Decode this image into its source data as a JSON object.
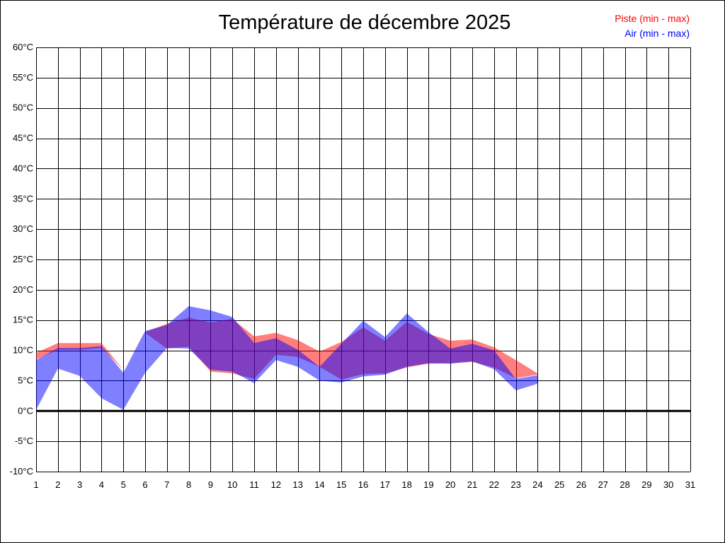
{
  "chart_data": {
    "type": "area",
    "title": "Température de décembre 2025",
    "legend_placement": "top-right",
    "grid": true,
    "ylim": [
      -10,
      60
    ],
    "xlim": [
      1,
      31
    ],
    "y_ticks": [
      -10,
      -5,
      0,
      5,
      10,
      15,
      20,
      25,
      30,
      35,
      40,
      45,
      50,
      55,
      60
    ],
    "y_tick_labels": [
      "-10°C",
      "-5°C",
      "0°C",
      "5°C",
      "10°C",
      "15°C",
      "20°C",
      "25°C",
      "30°C",
      "35°C",
      "40°C",
      "45°C",
      "50°C",
      "55°C",
      "60°C"
    ],
    "x": [
      1,
      2,
      3,
      4,
      5,
      6,
      7,
      8,
      9,
      10,
      11,
      12,
      13,
      14,
      15,
      16,
      17,
      18,
      19,
      20,
      21,
      22,
      23,
      24,
      25,
      26,
      27,
      28,
      29,
      30,
      31
    ],
    "x_tick_labels": [
      "1",
      "2",
      "3",
      "4",
      "5",
      "6",
      "7",
      "8",
      "9",
      "10",
      "11",
      "12",
      "13",
      "14",
      "15",
      "16",
      "17",
      "18",
      "19",
      "20",
      "21",
      "22",
      "23",
      "24",
      "25",
      "26",
      "27",
      "28",
      "29",
      "30",
      "31"
    ],
    "series": [
      {
        "name": "Piste (min - max)",
        "color": "#ff0000",
        "fill": "rgba(255, 0, 0, 0.5)",
        "days": [
          1,
          2,
          3,
          4,
          5,
          6,
          7,
          8,
          9,
          10,
          11,
          12,
          13,
          14,
          15,
          16,
          17,
          18,
          19,
          20,
          21,
          22,
          23,
          24
        ],
        "min": [
          8.5,
          10.1,
          10.1,
          10.4,
          6.8,
          12.9,
          10.3,
          10.6,
          6.5,
          6.2,
          5.3,
          9.3,
          8.9,
          7.3,
          5.2,
          6.1,
          6.2,
          7.2,
          7.8,
          7.9,
          8.1,
          7.2,
          5.4,
          6.0
        ],
        "max": [
          9.6,
          11.2,
          11.2,
          11.2,
          6.8,
          13.0,
          14.4,
          15.4,
          14.6,
          15.2,
          12.3,
          12.9,
          11.7,
          9.8,
          11.4,
          13.8,
          11.6,
          14.7,
          12.7,
          11.6,
          11.8,
          10.5,
          8.4,
          6.2
        ]
      },
      {
        "name": "Air (min - max)",
        "color": "#0000ff",
        "fill": "rgba(0, 0, 255, 0.5)",
        "days": [
          1,
          2,
          3,
          4,
          5,
          6,
          7,
          8,
          9,
          10,
          11,
          12,
          13,
          14,
          15,
          16,
          17,
          18,
          19,
          20,
          21,
          22,
          23,
          24
        ],
        "min": [
          0.2,
          7.0,
          5.8,
          2.1,
          0.2,
          6.3,
          10.4,
          10.3,
          6.8,
          6.5,
          4.6,
          8.4,
          7.3,
          5.0,
          4.7,
          5.7,
          6.0,
          7.3,
          7.9,
          7.8,
          8.2,
          6.9,
          3.4,
          4.5
        ],
        "max": [
          8.4,
          10.4,
          10.4,
          10.7,
          6.3,
          13.2,
          14.2,
          17.3,
          16.6,
          15.5,
          11.2,
          12.0,
          10.1,
          7.3,
          11.1,
          14.9,
          12.2,
          16.1,
          13.0,
          10.3,
          11.1,
          10.0,
          5.3,
          5.9
        ]
      }
    ]
  }
}
